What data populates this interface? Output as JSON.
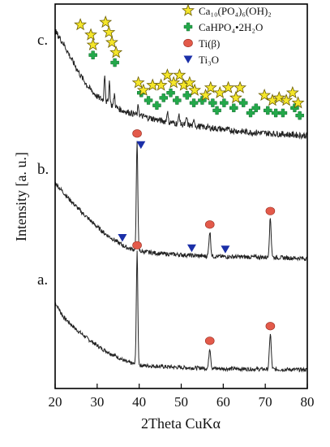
{
  "chart_data": {
    "type": "line",
    "xlabel": "2Theta CuKα",
    "ylabel": "Intensity [a. u.]",
    "xlim": [
      20,
      80
    ],
    "xticks": [
      20,
      30,
      40,
      50,
      60,
      70,
      80
    ],
    "grid": false,
    "legend_position": "top-right",
    "legend": [
      {
        "name": "Ca10(PO4)6(OH)2",
        "marker": "star",
        "color": "#f5e62a"
      },
      {
        "name": "CaHPO4•2H2O",
        "marker": "cross",
        "color": "#23a84a"
      },
      {
        "name": "Ti(β)",
        "marker": "circle",
        "color": "#e35a4a"
      },
      {
        "name": "Ti3O",
        "marker": "triangle",
        "color": "#1b2fa8"
      }
    ],
    "series": [
      {
        "label": "a.",
        "baseline_points": [
          [
            20,
            0.6
          ],
          [
            22,
            0.47
          ],
          [
            25,
            0.36
          ],
          [
            28,
            0.27
          ],
          [
            31,
            0.19
          ],
          [
            34,
            0.13
          ],
          [
            37,
            0.07
          ],
          [
            40,
            0.04
          ],
          [
            45,
            0.03
          ],
          [
            50,
            0.02
          ],
          [
            55,
            0.015
          ],
          [
            60,
            0.01
          ],
          [
            70,
            0.005
          ],
          [
            80,
            0.0
          ]
        ],
        "peaks": [
          [
            39.5,
            1.0,
            0.25
          ],
          [
            56.8,
            0.18,
            0.3
          ],
          [
            71.2,
            0.32,
            0.3
          ]
        ],
        "markers": [
          {
            "x": 39.5,
            "type": "circle"
          },
          {
            "x": 56.8,
            "type": "circle"
          },
          {
            "x": 71.2,
            "type": "circle"
          }
        ]
      },
      {
        "label": "b.",
        "baseline_points": [
          [
            20,
            0.62
          ],
          [
            23,
            0.5
          ],
          [
            26,
            0.39
          ],
          [
            29,
            0.29
          ],
          [
            32,
            0.2
          ],
          [
            35,
            0.13
          ],
          [
            37,
            0.09
          ],
          [
            40,
            0.06
          ],
          [
            45,
            0.04
          ],
          [
            50,
            0.03
          ],
          [
            55,
            0.02
          ],
          [
            60,
            0.015
          ],
          [
            70,
            0.01
          ],
          [
            80,
            0.0
          ]
        ],
        "peaks": [
          [
            39.5,
            0.9,
            0.25
          ],
          [
            56.8,
            0.2,
            0.3
          ],
          [
            71.2,
            0.32,
            0.3
          ]
        ],
        "markers": [
          {
            "x": 39.5,
            "type": "circle"
          },
          {
            "x": 40.8,
            "type": "triangle"
          },
          {
            "x": 36.0,
            "type": "triangle"
          },
          {
            "x": 56.8,
            "type": "circle"
          },
          {
            "x": 52.5,
            "type": "triangle"
          },
          {
            "x": 60.5,
            "type": "triangle"
          },
          {
            "x": 71.2,
            "type": "circle"
          }
        ]
      },
      {
        "label": "c.",
        "baseline_points": [
          [
            20,
            0.85
          ],
          [
            22,
            0.75
          ],
          [
            24,
            0.62
          ],
          [
            26,
            0.5
          ],
          [
            28,
            0.4
          ],
          [
            30,
            0.33
          ],
          [
            33,
            0.27
          ],
          [
            36,
            0.22
          ],
          [
            40,
            0.18
          ],
          [
            45,
            0.14
          ],
          [
            50,
            0.11
          ],
          [
            55,
            0.09
          ],
          [
            60,
            0.07
          ],
          [
            65,
            0.05
          ],
          [
            70,
            0.04
          ],
          [
            75,
            0.03
          ],
          [
            80,
            0.02
          ]
        ],
        "peaks": [
          [
            31.8,
            0.22,
            0.2
          ],
          [
            32.9,
            0.18,
            0.2
          ],
          [
            34.1,
            0.1,
            0.2
          ],
          [
            39.8,
            0.08,
            0.2
          ],
          [
            46.7,
            0.09,
            0.2
          ],
          [
            49.5,
            0.08,
            0.2
          ],
          [
            51.3,
            0.06,
            0.2
          ],
          [
            53.1,
            0.05,
            0.2
          ]
        ],
        "markers": [
          {
            "x": 26.0,
            "type": "star",
            "y": 0.9
          },
          {
            "x": 28.5,
            "type": "star",
            "y": 0.82
          },
          {
            "x": 29.0,
            "type": "star",
            "y": 0.74
          },
          {
            "x": 29.0,
            "type": "cross",
            "y": 0.66
          },
          {
            "x": 32.0,
            "type": "star",
            "y": 0.92
          },
          {
            "x": 32.8,
            "type": "star",
            "y": 0.84
          },
          {
            "x": 33.5,
            "type": "star",
            "y": 0.76
          },
          {
            "x": 34.5,
            "type": "star",
            "y": 0.68
          },
          {
            "x": 34.2,
            "type": "cross",
            "y": 0.6
          },
          {
            "x": 39.8,
            "type": "star",
            "y": 0.44
          },
          {
            "x": 40.5,
            "type": "cross",
            "y": 0.36
          },
          {
            "x": 41.0,
            "type": "star",
            "y": 0.38
          },
          {
            "x": 42.2,
            "type": "cross",
            "y": 0.3
          },
          {
            "x": 43.2,
            "type": "star",
            "y": 0.42
          },
          {
            "x": 44.2,
            "type": "cross",
            "y": 0.26
          },
          {
            "x": 45.2,
            "type": "star",
            "y": 0.42
          },
          {
            "x": 45.8,
            "type": "cross",
            "y": 0.32
          },
          {
            "x": 46.7,
            "type": "star",
            "y": 0.5
          },
          {
            "x": 47.5,
            "type": "cross",
            "y": 0.36
          },
          {
            "x": 48.2,
            "type": "star",
            "y": 0.44
          },
          {
            "x": 49.0,
            "type": "cross",
            "y": 0.3
          },
          {
            "x": 49.6,
            "type": "star",
            "y": 0.5
          },
          {
            "x": 50.6,
            "type": "star",
            "y": 0.42
          },
          {
            "x": 51.4,
            "type": "cross",
            "y": 0.34
          },
          {
            "x": 52.0,
            "type": "star",
            "y": 0.44
          },
          {
            "x": 53.2,
            "type": "star",
            "y": 0.38
          },
          {
            "x": 53.0,
            "type": "cross",
            "y": 0.28
          },
          {
            "x": 55.0,
            "type": "cross",
            "y": 0.3
          },
          {
            "x": 55.8,
            "type": "star",
            "y": 0.34
          },
          {
            "x": 57.0,
            "type": "star",
            "y": 0.4
          },
          {
            "x": 57.5,
            "type": "cross",
            "y": 0.28
          },
          {
            "x": 58.5,
            "type": "cross",
            "y": 0.22
          },
          {
            "x": 59.2,
            "type": "star",
            "y": 0.36
          },
          {
            "x": 60.2,
            "type": "cross",
            "y": 0.28
          },
          {
            "x": 61.2,
            "type": "star",
            "y": 0.4
          },
          {
            "x": 62.5,
            "type": "cross",
            "y": 0.24
          },
          {
            "x": 63.0,
            "type": "star",
            "y": 0.32
          },
          {
            "x": 64.0,
            "type": "star",
            "y": 0.4
          },
          {
            "x": 64.8,
            "type": "cross",
            "y": 0.28
          },
          {
            "x": 66.5,
            "type": "cross",
            "y": 0.2
          },
          {
            "x": 67.8,
            "type": "cross",
            "y": 0.24
          },
          {
            "x": 69.8,
            "type": "star",
            "y": 0.34
          },
          {
            "x": 70.6,
            "type": "cross",
            "y": 0.22
          },
          {
            "x": 71.7,
            "type": "star",
            "y": 0.3
          },
          {
            "x": 72.5,
            "type": "cross",
            "y": 0.2
          },
          {
            "x": 73.3,
            "type": "star",
            "y": 0.32
          },
          {
            "x": 74.2,
            "type": "cross",
            "y": 0.2
          },
          {
            "x": 75.0,
            "type": "star",
            "y": 0.3
          },
          {
            "x": 76.5,
            "type": "star",
            "y": 0.36
          },
          {
            "x": 77.0,
            "type": "cross",
            "y": 0.24
          },
          {
            "x": 77.8,
            "type": "star",
            "y": 0.28
          },
          {
            "x": 78.2,
            "type": "cross",
            "y": 0.18
          }
        ]
      }
    ]
  }
}
